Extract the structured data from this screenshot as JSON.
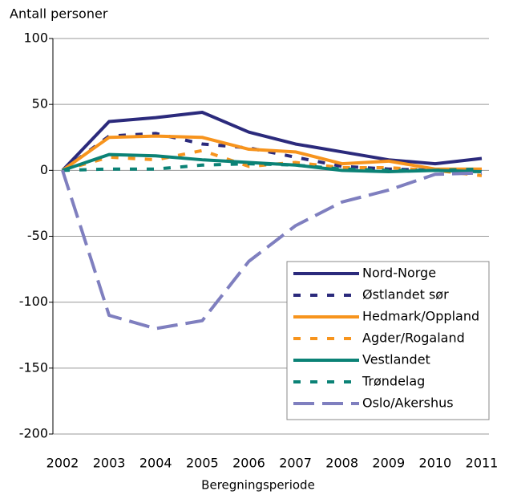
{
  "chart_data": {
    "type": "line",
    "y_label": "Antall personer",
    "x_label": "Beregningsperiode",
    "x": [
      2002,
      2003,
      2004,
      2005,
      2006,
      2007,
      2008,
      2009,
      2010,
      2011
    ],
    "xlim": [
      2002,
      2011
    ],
    "xticks": [
      2002,
      2003,
      2004,
      2005,
      2006,
      2007,
      2008,
      2009,
      2010,
      2011
    ],
    "ylim": [
      -200,
      100
    ],
    "yticks": [
      -200,
      -150,
      -100,
      -50,
      0,
      50,
      100
    ],
    "grid": true,
    "legend": "lower right",
    "series": [
      {
        "name": "Nord-Norge",
        "color": "#2b2a7c",
        "dashed": false,
        "values": [
          0,
          37,
          40,
          44,
          29,
          20,
          14,
          8,
          5,
          9
        ]
      },
      {
        "name": "Østlandet sør",
        "color": "#2b2a7c",
        "dashed": true,
        "values": [
          0,
          26,
          28,
          20,
          17,
          10,
          3,
          1,
          0,
          -1
        ]
      },
      {
        "name": "Hedmark/Oppland",
        "color": "#f7941d",
        "dashed": false,
        "values": [
          0,
          25,
          26,
          25,
          16,
          14,
          5,
          7,
          1,
          1
        ]
      },
      {
        "name": "Agder/Rogaland",
        "color": "#f7941d",
        "dashed": true,
        "values": [
          0,
          10,
          8,
          15,
          3,
          6,
          2,
          2,
          0,
          -4
        ]
      },
      {
        "name": "Vestlandet",
        "color": "#0b8276",
        "dashed": false,
        "values": [
          0,
          12,
          11,
          8,
          6,
          4,
          0,
          -1,
          0,
          -1
        ]
      },
      {
        "name": "Trøndelag",
        "color": "#0b8276",
        "dashed": true,
        "values": [
          0,
          1,
          1,
          4,
          5,
          4,
          1,
          0,
          0,
          1
        ]
      },
      {
        "name": "Oslo/Akershus",
        "color": "#7f7fbf",
        "dashed": true,
        "values": [
          0,
          -110,
          -120,
          -114,
          -69,
          -42,
          -24,
          -15,
          -3,
          -2
        ]
      }
    ]
  }
}
